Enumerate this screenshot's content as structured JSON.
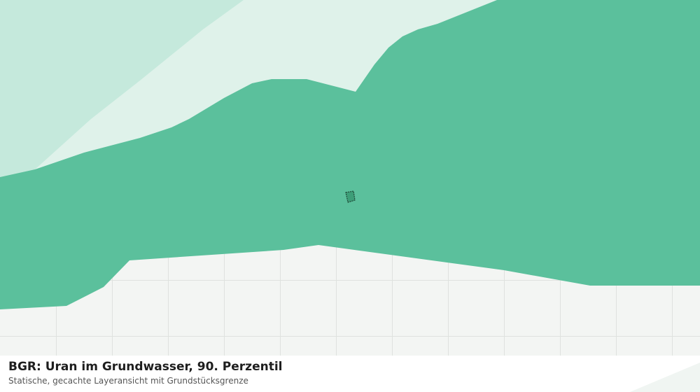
{
  "map": {
    "title": "BGR: Uran im Grundwasser, 90. Perzentil",
    "subtitle": "Statische, gecachte Layeransicht mit Grundstücksgrenze"
  }
}
